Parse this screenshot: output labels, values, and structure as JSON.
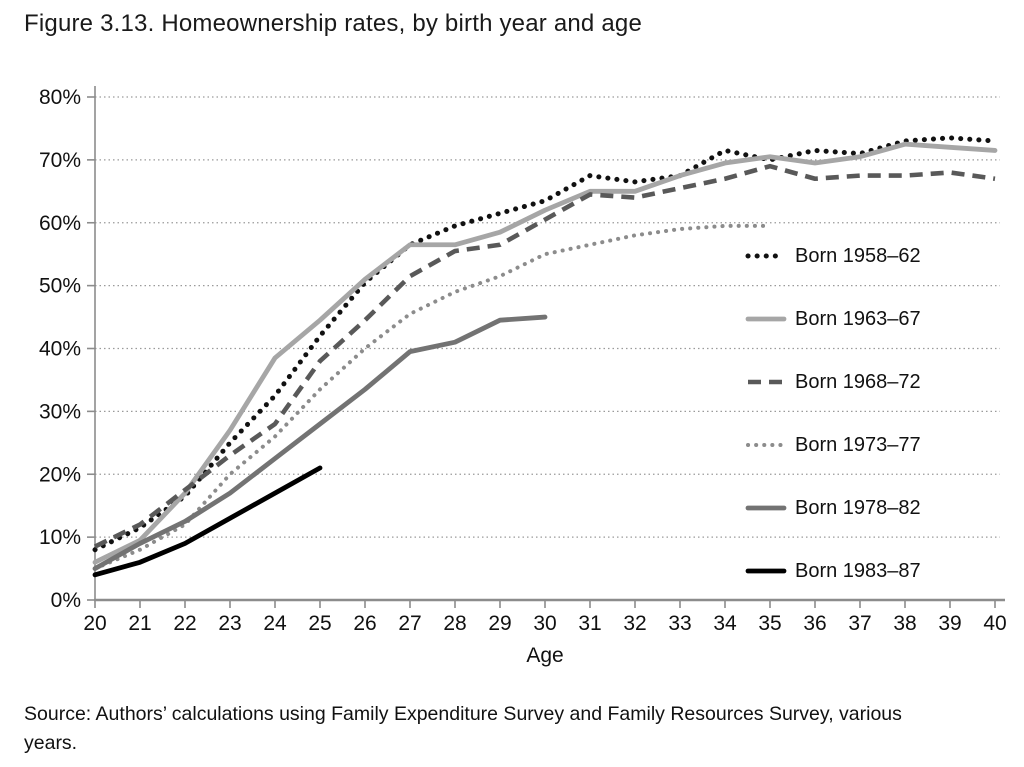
{
  "title": "Figure 3.13. Homeownership rates, by birth year and age",
  "source": {
    "line1": "Source: Authors’ calculations using Family Expenditure Survey and Family Resources Survey, various",
    "line2": "years."
  },
  "chart_data": {
    "type": "line",
    "title": "Figure 3.13. Homeownership rates, by birth year and age",
    "xlabel": "Age",
    "ylabel": "",
    "xlim": [
      20,
      40
    ],
    "ylim": [
      0,
      80
    ],
    "x_ticks": [
      20,
      21,
      22,
      23,
      24,
      25,
      26,
      27,
      28,
      29,
      30,
      31,
      32,
      33,
      34,
      35,
      36,
      37,
      38,
      39,
      40
    ],
    "y_ticks": [
      0,
      10,
      20,
      30,
      40,
      50,
      60,
      70,
      80
    ],
    "y_tick_suffix": "%",
    "grid": "horizontal-dotted",
    "legend_position": "right-inside",
    "series": [
      {
        "name": "Born 1958–62",
        "color": "#111111",
        "style": "dotted-large",
        "x_start": 20,
        "values": [
          8,
          11.5,
          16.5,
          25,
          32.5,
          42,
          50.5,
          56.5,
          59.5,
          61.5,
          63.5,
          67.5,
          66.5,
          67.5,
          71.5,
          70,
          71.5,
          71,
          73,
          73.5,
          73
        ]
      },
      {
        "name": "Born 1963–67",
        "color": "#a6a6a6",
        "style": "solid",
        "x_start": 20,
        "values": [
          6,
          9.5,
          17,
          27,
          38.5,
          44.5,
          51,
          56.5,
          56.5,
          58.5,
          62,
          65,
          65,
          67.5,
          69.5,
          70.5,
          69.5,
          70.5,
          72.5,
          72,
          71.5
        ]
      },
      {
        "name": "Born 1968–72",
        "color": "#595959",
        "style": "dashed",
        "x_start": 20,
        "values": [
          8.5,
          12,
          17.5,
          23,
          28,
          38,
          44.5,
          51.5,
          55.5,
          56.5,
          60.5,
          64.5,
          64,
          65.5,
          67,
          69,
          67,
          67.5,
          67.5,
          68,
          67
        ]
      },
      {
        "name": "Born 1973–77",
        "color": "#8c8c8c",
        "style": "dotted-small",
        "x_start": 20,
        "values": [
          5,
          8,
          12,
          20,
          26,
          33.5,
          40,
          45.5,
          49,
          51.5,
          55,
          56.5,
          58,
          59,
          59.5,
          59.5
        ]
      },
      {
        "name": "Born 1978–82",
        "color": "#737373",
        "style": "solid",
        "x_start": 20,
        "values": [
          5,
          9,
          12.5,
          17,
          22.5,
          28,
          33.5,
          39.5,
          41,
          44.5,
          45
        ]
      },
      {
        "name": "Born 1983–87",
        "color": "#000000",
        "style": "solid",
        "x_start": 20,
        "values": [
          4,
          6,
          9,
          13,
          17,
          21
        ]
      }
    ]
  }
}
